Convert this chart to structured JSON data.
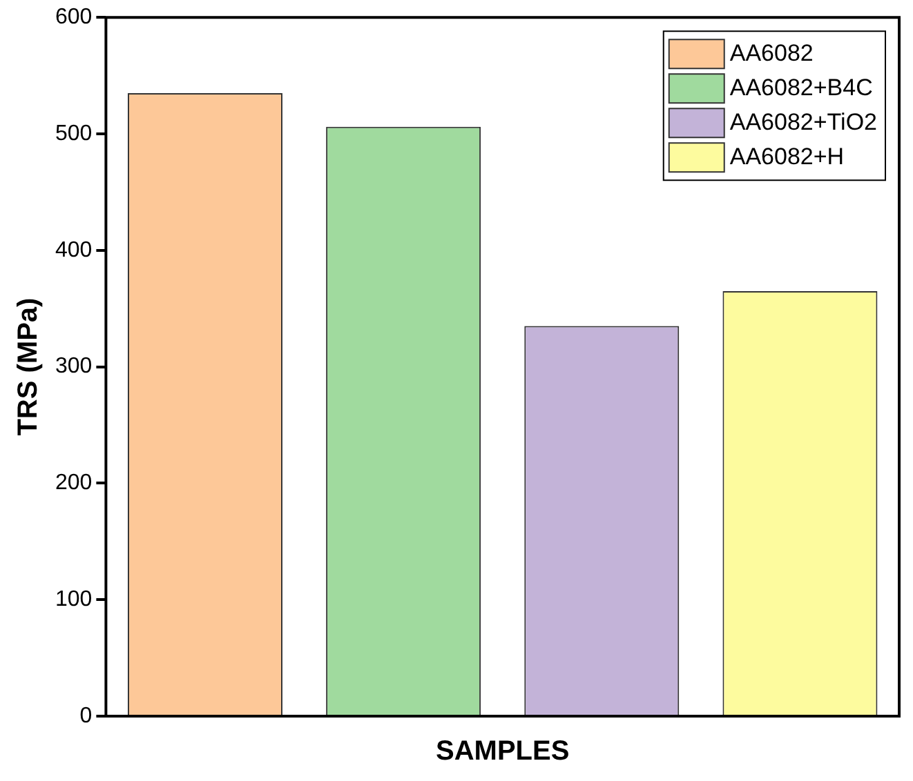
{
  "chart_data": {
    "type": "bar",
    "xlabel": "SAMPLES",
    "ylabel": "TRS (MPa)",
    "categories": [
      null,
      null,
      null,
      null
    ],
    "series": [
      {
        "name": "AA6082",
        "color": "#fdc898",
        "values": [
          535,
          null,
          null,
          null
        ]
      },
      {
        "name": "AA6082+B4C",
        "color": "#a0da9e",
        "values": [
          null,
          506,
          null,
          null
        ]
      },
      {
        "name": "AA6082+TiO2",
        "color": "#c3b3d8",
        "values": [
          null,
          null,
          335,
          null
        ]
      },
      {
        "name": "AA6082+H",
        "color": "#fdfb9e",
        "values": [
          null,
          null,
          null,
          365
        ]
      }
    ],
    "ylim": [
      0,
      600
    ],
    "yticks": [
      0,
      100,
      200,
      300,
      400,
      500,
      600
    ],
    "stacked": true,
    "grid": false,
    "legend": "top right"
  }
}
